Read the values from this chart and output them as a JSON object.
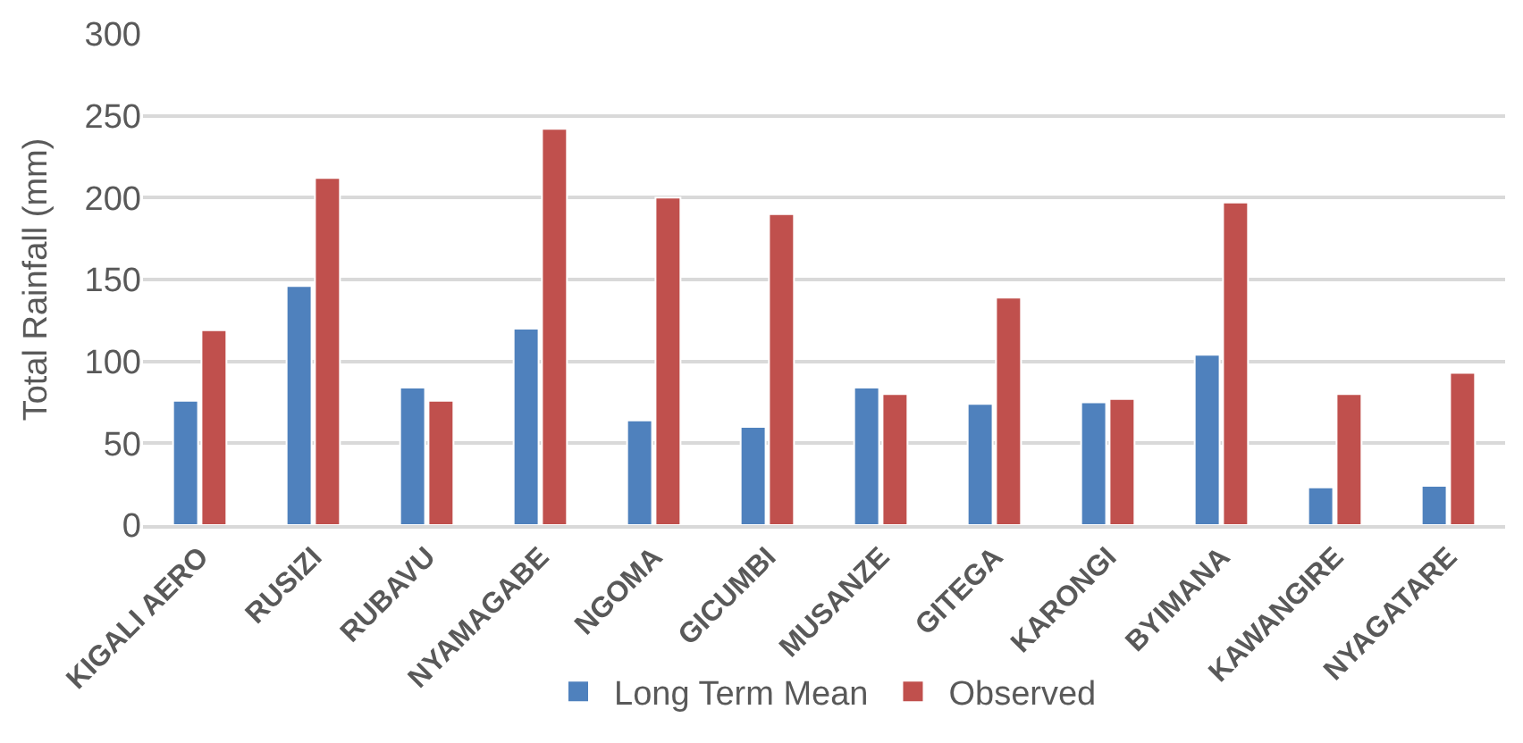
{
  "chart_data": {
    "type": "bar",
    "ylabel": "Total Rainfall (mm)",
    "categories": [
      "KIGALI AERO",
      "RUSIZI",
      "RUBAVU",
      "NYAMAGABE",
      "NGOMA",
      "GICUMBI",
      "MUSANZE",
      "GITEGA",
      "KARONGI",
      "BYIMANA",
      "KAWANGIRE",
      "NYAGATARE"
    ],
    "series": [
      {
        "name": "Long Term Mean",
        "color": "#4f81bd",
        "values": [
          76,
          146,
          84,
          120,
          64,
          60,
          84,
          74,
          75,
          104,
          23,
          24
        ]
      },
      {
        "name": "Observed",
        "color": "#c0504d",
        "values": [
          119,
          212,
          76,
          242,
          200,
          190,
          80,
          139,
          77,
          197,
          80,
          93
        ]
      }
    ],
    "ylim": [
      0,
      300
    ],
    "yticks": [
      0,
      50,
      100,
      150,
      200,
      250,
      300
    ],
    "grid": "y",
    "legend": "bottom"
  }
}
